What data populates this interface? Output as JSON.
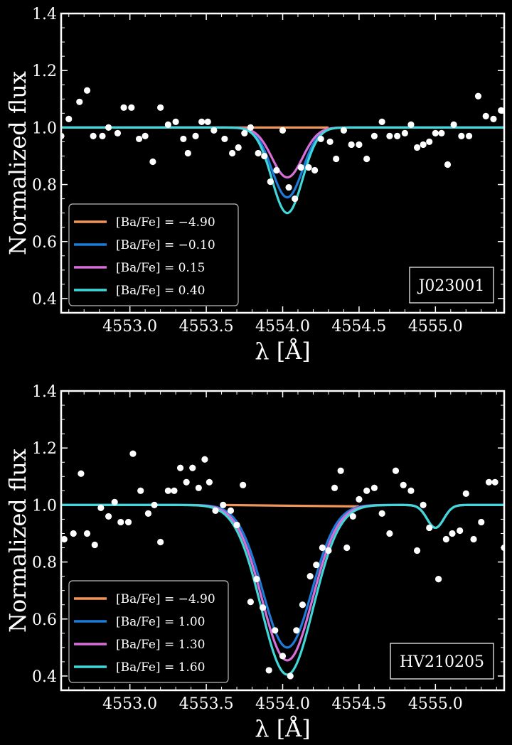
{
  "chart_data": [
    {
      "type": "line",
      "star_label": "J023001",
      "xlabel": "λ [Å]",
      "ylabel": "Normalized flux",
      "xlim": [
        4552.55,
        4555.45
      ],
      "ylim": [
        0.35,
        1.4
      ],
      "xticks": [
        4553.0,
        4553.5,
        4554.0,
        4554.5,
        4555.0
      ],
      "xtick_labels": [
        "4553.0",
        "4553.5",
        "4554.0",
        "4554.5",
        "4555.0"
      ],
      "yticks": [
        0.4,
        0.6,
        0.8,
        1.0,
        1.2,
        1.4
      ],
      "ytick_labels": [
        "0.4",
        "0.6",
        "0.8",
        "1.0",
        "1.2",
        "1.4"
      ],
      "legend_position": "bottom-left",
      "series": [
        {
          "name": "[Ba/Fe] = −4.90",
          "color": "#f0955a",
          "values": [
            {
              "x": 4552.55,
              "y": 1.0
            },
            {
              "x": 4554.3,
              "y": 1.0
            }
          ],
          "model": {
            "depths": [],
            "centers": [],
            "widths": [],
            "hidden_after": 4554.3
          }
        },
        {
          "name": "[Ba/Fe] = −0.10",
          "color": "#1e7bd8",
          "model": {
            "depths": [
              0.245,
              0.0
            ],
            "centers": [
              4554.03,
              4555.0
            ],
            "widths": [
              0.1,
              0.05
            ]
          }
        },
        {
          "name": "[Ba/Fe] = 0.15",
          "color": "#d86ed8",
          "model": {
            "depths": [
              0.175,
              0.0
            ],
            "centers": [
              4554.03,
              4555.0
            ],
            "widths": [
              0.1,
              0.05
            ]
          }
        },
        {
          "name": "[Ba/Fe] = 0.40",
          "color": "#3fd7d7",
          "model": {
            "depths": [
              0.3,
              0.0
            ],
            "centers": [
              4554.03,
              4555.0
            ],
            "widths": [
              0.1,
              0.05
            ]
          }
        }
      ],
      "observed": {
        "color": "#ffffff",
        "points": [
          [
            4552.55,
            0.97
          ],
          [
            4552.6,
            1.03
          ],
          [
            4552.67,
            1.09
          ],
          [
            4552.72,
            1.13
          ],
          [
            4552.76,
            0.97
          ],
          [
            4552.82,
            0.97
          ],
          [
            4552.86,
            1.0
          ],
          [
            4552.92,
            0.98
          ],
          [
            4552.96,
            1.07
          ],
          [
            4553.01,
            1.07
          ],
          [
            4553.06,
            0.96
          ],
          [
            4553.1,
            0.97
          ],
          [
            4553.15,
            0.88
          ],
          [
            4553.2,
            1.07
          ],
          [
            4553.25,
            1.01
          ],
          [
            4553.3,
            1.02
          ],
          [
            4553.35,
            0.96
          ],
          [
            4553.38,
            0.91
          ],
          [
            4553.43,
            0.97
          ],
          [
            4553.47,
            1.02
          ],
          [
            4553.51,
            1.02
          ],
          [
            4553.55,
            0.99
          ],
          [
            4553.62,
            0.96
          ],
          [
            4553.67,
            0.91
          ],
          [
            4553.71,
            0.93
          ],
          [
            4553.75,
            0.98
          ],
          [
            4553.79,
            1.0
          ],
          [
            4553.84,
            0.91
          ],
          [
            4553.88,
            0.9
          ],
          [
            4553.92,
            0.81
          ],
          [
            4553.96,
            0.85
          ],
          [
            4554.0,
            0.99
          ],
          [
            4554.04,
            0.79
          ],
          [
            4554.08,
            0.75
          ],
          [
            4554.12,
            0.86
          ],
          [
            4554.17,
            0.86
          ],
          [
            4554.21,
            0.85
          ],
          [
            4554.25,
            0.96
          ],
          [
            4554.31,
            0.95
          ],
          [
            4554.35,
            0.89
          ],
          [
            4554.4,
            0.99
          ],
          [
            4554.45,
            0.94
          ],
          [
            4554.5,
            0.94
          ],
          [
            4554.55,
            0.89
          ],
          [
            4554.6,
            0.97
          ],
          [
            4554.65,
            1.02
          ],
          [
            4554.7,
            0.97
          ],
          [
            4554.75,
            0.97
          ],
          [
            4554.8,
            0.98
          ],
          [
            4554.84,
            1.01
          ],
          [
            4554.88,
            0.93
          ],
          [
            4554.92,
            0.94
          ],
          [
            4554.96,
            0.95
          ],
          [
            4555.0,
            0.98
          ],
          [
            4555.04,
            0.98
          ],
          [
            4555.08,
            0.87
          ],
          [
            4555.12,
            1.01
          ],
          [
            4555.17,
            0.97
          ],
          [
            4555.22,
            0.97
          ],
          [
            4555.28,
            1.11
          ],
          [
            4555.33,
            1.04
          ],
          [
            4555.38,
            1.03
          ],
          [
            4555.43,
            1.06
          ]
        ]
      }
    },
    {
      "type": "line",
      "star_label": "HV210205",
      "xlabel": "λ [Å]",
      "ylabel": "Normalized flux",
      "xlim": [
        4552.55,
        4555.45
      ],
      "ylim": [
        0.35,
        1.4
      ],
      "xticks": [
        4553.0,
        4553.5,
        4554.0,
        4554.5,
        4555.0
      ],
      "xtick_labels": [
        "4553.0",
        "4553.5",
        "4554.0",
        "4554.5",
        "4555.0"
      ],
      "yticks": [
        0.4,
        0.6,
        0.8,
        1.0,
        1.2,
        1.4
      ],
      "ytick_labels": [
        "0.4",
        "0.6",
        "0.8",
        "1.0",
        "1.2",
        "1.4"
      ],
      "legend_position": "bottom-left",
      "series": [
        {
          "name": "[Ba/Fe] = −4.90",
          "color": "#f0955a",
          "values": [
            {
              "x": 4553.6,
              "y": 1.0
            },
            {
              "x": 4554.5,
              "y": 0.995
            }
          ]
        },
        {
          "name": "[Ba/Fe] = 1.00",
          "color": "#1e7bd8",
          "model": {
            "depths": [
              0.5,
              0.08
            ],
            "centers": [
              4554.03,
              4555.0
            ],
            "widths": [
              0.16,
              0.055
            ]
          }
        },
        {
          "name": "[Ba/Fe] = 1.30",
          "color": "#d86ed8",
          "model": {
            "depths": [
              0.545,
              0.08
            ],
            "centers": [
              4554.03,
              4555.0
            ],
            "widths": [
              0.165,
              0.055
            ]
          }
        },
        {
          "name": "[Ba/Fe] = 1.60",
          "color": "#3fd7d7",
          "model": {
            "depths": [
              0.595,
              0.08
            ],
            "centers": [
              4554.03,
              4555.0
            ],
            "widths": [
              0.17,
              0.055
            ]
          }
        }
      ],
      "observed": {
        "color": "#ffffff",
        "points": [
          [
            4552.57,
            0.88
          ],
          [
            4552.63,
            0.9
          ],
          [
            4552.68,
            1.11
          ],
          [
            4552.72,
            0.9
          ],
          [
            4552.77,
            0.86
          ],
          [
            4552.81,
            0.99
          ],
          [
            4552.86,
            0.96
          ],
          [
            4552.9,
            1.01
          ],
          [
            4552.94,
            0.94
          ],
          [
            4552.99,
            0.94
          ],
          [
            4553.02,
            1.18
          ],
          [
            4553.07,
            1.05
          ],
          [
            4553.12,
            0.97
          ],
          [
            4553.16,
            1.0
          ],
          [
            4553.2,
            0.87
          ],
          [
            4553.25,
            1.05
          ],
          [
            4553.29,
            1.05
          ],
          [
            4553.33,
            1.13
          ],
          [
            4553.37,
            1.08
          ],
          [
            4553.41,
            1.13
          ],
          [
            4553.45,
            1.06
          ],
          [
            4553.49,
            1.16
          ],
          [
            4553.52,
            1.08
          ],
          [
            4553.56,
            0.98
          ],
          [
            4553.61,
            1.0
          ],
          [
            4553.66,
            0.98
          ],
          [
            4553.7,
            0.93
          ],
          [
            4553.74,
            1.07
          ],
          [
            4553.79,
            0.66
          ],
          [
            4553.83,
            0.74
          ],
          [
            4553.87,
            0.64
          ],
          [
            4553.91,
            0.42
          ],
          [
            4553.95,
            0.56
          ],
          [
            4554.0,
            0.47
          ],
          [
            4554.05,
            0.4
          ],
          [
            4554.09,
            0.56
          ],
          [
            4554.13,
            0.65
          ],
          [
            4554.18,
            0.75
          ],
          [
            4554.22,
            0.79
          ],
          [
            4554.26,
            0.85
          ],
          [
            4554.3,
            0.84
          ],
          [
            4554.34,
            1.06
          ],
          [
            4554.38,
            1.12
          ],
          [
            4554.42,
            0.85
          ],
          [
            4554.46,
            0.96
          ],
          [
            4554.5,
            1.02
          ],
          [
            4554.55,
            1.05
          ],
          [
            4554.6,
            1.06
          ],
          [
            4554.65,
            0.97
          ],
          [
            4554.7,
            0.9
          ],
          [
            4554.74,
            1.12
          ],
          [
            4554.79,
            1.07
          ],
          [
            4554.84,
            1.05
          ],
          [
            4554.88,
            0.84
          ],
          [
            4554.92,
            1.0
          ],
          [
            4554.96,
            0.92
          ],
          [
            4555.02,
            0.74
          ],
          [
            4555.07,
            0.88
          ],
          [
            4555.11,
            0.9
          ],
          [
            4555.16,
            0.91
          ],
          [
            4555.2,
            1.04
          ],
          [
            4555.25,
            0.88
          ],
          [
            4555.3,
            0.94
          ],
          [
            4555.35,
            1.08
          ],
          [
            4555.39,
            1.08
          ],
          [
            4555.45,
            0.85
          ]
        ]
      }
    }
  ]
}
